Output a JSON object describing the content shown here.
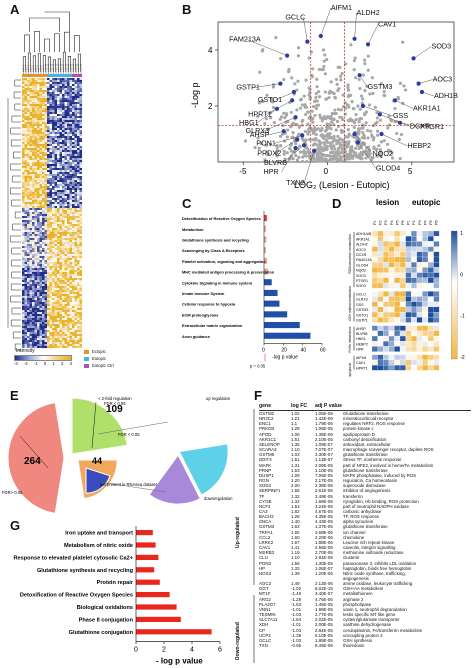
{
  "letters": {
    "a": "A",
    "b": "B",
    "c": "C",
    "d": "D",
    "e": "E",
    "f": "F",
    "g": "G"
  },
  "panel_a": {
    "legend_title": "Intensity",
    "legend_ticks": [
      "-3",
      "-2",
      "-1",
      "0",
      "1",
      "2",
      "3"
    ],
    "groups": [
      {
        "label": "Ectopic",
        "color": "#e8922a"
      },
      {
        "label": "Eutopic",
        "color": "#46b3e6"
      },
      {
        "label": "Eutopic Ctrl",
        "color": "#b050b0"
      }
    ],
    "colors": {
      "low": "#1f2e8a",
      "mid": "#ffffff",
      "high": "#e8b22a"
    }
  },
  "panel_b": {
    "chart_data": {
      "type": "scatter",
      "xlabel": "LOG₂ (Lesion - Eutopic)",
      "ylabel": "-Log p",
      "xticks": [
        "-5",
        "0",
        "5"
      ],
      "yticks": [
        "2",
        "4"
      ],
      "xlim": [
        -6.5,
        7.5
      ],
      "ylim": [
        0,
        5
      ],
      "labels": [
        {
          "name": "GCLC",
          "x": -1.2,
          "y": 4.3
        },
        {
          "name": "AIFM1",
          "x": -0.4,
          "y": 4.5
        },
        {
          "name": "FAM213A",
          "x": -2.4,
          "y": 3.8
        },
        {
          "name": "ALDH2",
          "x": 1.6,
          "y": 4.4
        },
        {
          "name": "CAV1",
          "x": 2.4,
          "y": 4.2
        },
        {
          "name": "SOD3",
          "x": 5.1,
          "y": 3.7
        },
        {
          "name": "GSTP1",
          "x": -2.8,
          "y": 2.8
        },
        {
          "name": "GSTO1",
          "x": -2.0,
          "y": 2.5
        },
        {
          "name": "GSTM3",
          "x": 1.9,
          "y": 3.1
        },
        {
          "name": "HPRT1",
          "x": -2.1,
          "y": 2.2
        },
        {
          "name": "HBG1",
          "x": -3.0,
          "y": 1.9
        },
        {
          "name": "GLRX3",
          "x": -1.9,
          "y": 1.6
        },
        {
          "name": "AOC3",
          "x": 5.4,
          "y": 2.8
        },
        {
          "name": "ADH1B",
          "x": 5.6,
          "y": 2.5
        },
        {
          "name": "AKR1A1",
          "x": 4.0,
          "y": 2.2
        },
        {
          "name": "GSS",
          "x": 2.1,
          "y": 2.0
        },
        {
          "name": "DCXR",
          "x": 3.1,
          "y": 1.7
        },
        {
          "name": "AHSP",
          "x": -2.6,
          "y": 1.1
        },
        {
          "name": "PON1",
          "x": -1.5,
          "y": 0.95
        },
        {
          "name": "PRDX2",
          "x": -1.8,
          "y": 0.8
        },
        {
          "name": "BLVRB",
          "x": -1.4,
          "y": 0.6
        },
        {
          "name": "HPR",
          "x": -1.9,
          "y": 0.5
        },
        {
          "name": "TXN2",
          "x": -0.8,
          "y": 0.4
        },
        {
          "name": "PTGR1",
          "x": 4.3,
          "y": 1.4
        },
        {
          "name": "HEBP2",
          "x": 3.2,
          "y": 1.0
        },
        {
          "name": "NQO2",
          "x": 1.6,
          "y": 1.0
        },
        {
          "name": "GLOD4",
          "x": 1.8,
          "y": 0.7
        }
      ],
      "threshold_lines": {
        "x": [
          -1,
          1
        ],
        "y": 1.3
      }
    }
  },
  "panel_c": {
    "chart_data": {
      "type": "bar",
      "orientation": "horizontal",
      "categories": [
        "Detoxification of Reactive Oxygen Species",
        "Metabolism",
        "Glutathione synthesis and recycling",
        "Scavenging by Class A Receptors",
        "Platelet activation, signaling and aggregation",
        "MHC mediated antigen processing & presentation",
        "Cytokine Signaling in Immune system",
        "Innate Immune System",
        "Cellular response to hypoxia",
        "ECM proteoglycans",
        "Extracellular matrix organization",
        "Axon guidance"
      ],
      "values": [
        3,
        2,
        2.5,
        2,
        3,
        4,
        8,
        14,
        16,
        24,
        37,
        48
      ],
      "xticks": [
        "0",
        "20",
        "40",
        "60"
      ],
      "xlim": [
        0,
        60
      ],
      "xlabel": "-log p value",
      "annotation": "p = 0.05",
      "colors": {
        "red": "#e8392a",
        "salmon": "#f2a08a",
        "blue": "#1f4fa8"
      }
    }
  },
  "panel_d": {
    "col_groups": [
      "lesion",
      "eutopic"
    ],
    "columns": [
      "P1",
      "P2",
      "P3",
      "P4",
      "P5",
      "P6",
      "P1",
      "P2",
      "P3",
      "P4",
      "P5",
      "P6"
    ],
    "row_groups": [
      {
        "label": "ROS/xenobiotic metabolism",
        "rows": [
          "ADH1A/B",
          "AKR1A1",
          "ALDH2",
          "AOC3",
          "DCXR",
          "FAM213A",
          "GLOD4",
          "NQO2",
          "SOD3",
          "PTGR1",
          "SOD3"
        ]
      },
      {
        "label": "GSH related metabolism",
        "rows": [
          "GCLC",
          "GLRX3",
          "GSS",
          "GSTM3",
          "GSTO1",
          "GSTP1"
        ]
      },
      {
        "label": "Fe/Hb metabolism",
        "rows": [
          "AHSP",
          "BLVRB",
          "HBG1",
          "HEBP2",
          "HPR"
        ]
      },
      {
        "label": "apoptosis",
        "rows": [
          "AIFM1",
          "CAV1",
          "HPRT1"
        ]
      }
    ],
    "colorbar_ticks": [
      "1",
      "0",
      "-1",
      "-2"
    ],
    "colors": {
      "high": "#1c4f9c",
      "mid": "#ffffff",
      "low": "#f2b642"
    }
  },
  "panel_e": {
    "values": [
      "264",
      "109",
      "44"
    ],
    "labels": {
      "lfc2": "< 2-fold regulation\nFDR < 0.05",
      "fdr": "FDR < 0.05",
      "fdr2": "FDR> 0.05",
      "notpresent": "not present in RNAseq dataset",
      "up": "up regulation",
      "down": "downregulation"
    },
    "colors": {
      "big": "#f08880",
      "green": "#b0e06a",
      "orange": "#f0a85a",
      "cyan": "#5ed0e8",
      "purple": "#a888d8"
    }
  },
  "panel_f": {
    "headers": [
      "gene",
      "log FC",
      "adj P value",
      ""
    ],
    "up_label": "Up-regulated",
    "down_label": "Down-regulated",
    "rows": [
      [
        "GSTM2",
        "1.02",
        "1.05E-08",
        "Glutathione transferase"
      ],
      [
        "NR2C2",
        "1.21",
        "1.42E-09",
        "mineralocorticoid receptor"
      ],
      [
        "ENC1",
        "1.1",
        "1.79E-06",
        "regulates NRF2, ROS response"
      ],
      [
        "PRKCB",
        "1.29",
        "1.06E-05",
        "protein kinase c"
      ],
      [
        "APOD",
        "1.06",
        "1.38E-06",
        "apolipoprotein D"
      ],
      [
        "AKR1C1",
        "1.51",
        "2.10E-05",
        "carbonyl detoxification"
      ],
      [
        "SELENOP",
        "1.35",
        "1.09E-07",
        "antioxidant, extracellular"
      ],
      [
        "SCARA3",
        "1.10",
        "7.07E-07",
        "macrophage scavenger receptor, deplete ROS"
      ],
      [
        "GSTM5",
        "1.03",
        "2.30E-07",
        "glutathione transferase"
      ],
      [
        "DDIT4",
        "1.51",
        "1.13E-07",
        "Stress TF, ironheme response"
      ],
      [
        "MAFK",
        "1.31",
        "2.09E-05",
        "part of NFE2, involved in heme/Fe metabolism"
      ],
      [
        "PRNP",
        "1.53",
        "1.10E-05",
        "glutathione transferase"
      ],
      [
        "DUSP1",
        "1.09",
        "7.06E-05",
        "MAPK phosphatase, induced by ROS"
      ],
      [
        "RGN",
        "1.20",
        "2.17E-05",
        "regucalcin, Ca homeostasis"
      ],
      [
        "SOD3",
        "2.00",
        "2.38E-05",
        "superoxide dismutase"
      ],
      [
        "SERPINF1",
        "1.56",
        "2.61E-05",
        "inhibitor of angiogenesis"
      ],
      [
        "TF",
        "1.32",
        "3.49E-05",
        "transferrin"
      ],
      [
        "CYGB",
        "1.32",
        "1.68E-05",
        "cytoglobin, Hb binding, ROS protection"
      ],
      [
        "NCF4",
        "1.53",
        "3.24E-05",
        "part of neutrophil NADPH oxidase"
      ],
      [
        "CA3",
        "1.82",
        "4.67E-05",
        "carbonic anhydrase"
      ],
      [
        "BACH2",
        "1.28",
        "4.35E-05",
        "TF, ROS response"
      ],
      [
        "SNCA",
        "1.40",
        "4.43E-05",
        "alpha synuclein"
      ],
      [
        "GSTM3",
        "1.63",
        "1.37E-05",
        "glutathione transferase"
      ],
      [
        "TRPA1",
        "1.55",
        "3.69E-06",
        "ion channel"
      ],
      [
        "CCL2",
        "1.60",
        "2.20E-06",
        "chemokine"
      ],
      [
        "LRRK2",
        "1.67",
        "1.88E-06",
        "Leucine rich repeat kinase"
      ],
      [
        "CAV1",
        "1.41",
        "2.56E-06",
        "caveolin, integrin signalling"
      ],
      [
        "MSRB3",
        "1.19",
        "2.70E-06",
        "methionine sulfoxide reductase"
      ],
      [
        "CLU",
        "1.10",
        "2.84E-05",
        "clusterin"
      ],
      [
        "PON3",
        "1.56",
        "1.30E-05",
        "paraoxonase 3, inhibits LDL oxidation"
      ],
      [
        "HP",
        "1.33",
        "1.06E-07",
        "haptoglobin, binds free hemoglobin"
      ],
      [
        "NOS3",
        "1.39",
        "1.20E-06",
        "Nitric oxide synthase, trafficking,"
      ],
      [
        "",
        "",
        "",
        "angiogenesis"
      ],
      [
        "AOC3",
        "1.49",
        "2.13E-06",
        "amine oxidase, leukocyte trafficking"
      ],
      [
        "",
        "",
        "",
        ""
      ],
      [
        "GGT",
        "-1.02",
        "6.02E-15",
        "GSH-AA metabolism"
      ],
      [
        "MT1F",
        "-1.49",
        "3.40E-07",
        "metallothionein"
      ],
      [
        "ARG2",
        "-1.28",
        "4.76E-06",
        "arginase 2"
      ],
      [
        "PLA2G7",
        "-1.63",
        "1.46E-05",
        "phospholipase"
      ],
      [
        "VNN1",
        "-1.01",
        "1.99E-05",
        "vanin 1, neutrophil degranulation"
      ],
      [
        "TESMIN",
        "-1.03",
        "2.77E-05",
        "testis specific MT like gene"
      ],
      [
        "SLC7A11",
        "-1.64",
        "2.02E-05",
        "cystein/glutamate transporter"
      ],
      [
        "XDH",
        "-1.01",
        "2.00E-05",
        "xanthine dehydrogenase"
      ],
      [
        "CP",
        "-1.03",
        "2.84E-05",
        "ceruloplasmin, Fe/transferrin metabolism"
      ],
      [
        "UCP2",
        "-1.39",
        "5.10E-05",
        "uncoupling protein 2"
      ],
      [
        "GCLC",
        "-1.03",
        "1.89E-05",
        "GSH synthesis"
      ],
      [
        "TXN",
        "-0.95",
        "8.45E-06",
        "thioredoxin"
      ]
    ]
  },
  "panel_g": {
    "chart_data": {
      "type": "bar",
      "orientation": "horizontal",
      "categories": [
        "Iron uptake and transport",
        "Metabolism of nitric oxide",
        "Response to elevated platelet cytosolic Ca2+",
        "Glutathione synthesis and recycling",
        "Protein repair",
        "Detoxification of Reactive Oxygen Species",
        "Biological oxidations",
        "Phase II conjugation",
        "Glutathione conjugation"
      ],
      "values": [
        1.2,
        1.4,
        1.6,
        1.3,
        1.7,
        2.4,
        2.9,
        3.2,
        5.4
      ],
      "xticks": [
        "0",
        "2",
        "4",
        "6"
      ],
      "xlim": [
        0,
        6
      ],
      "xlabel": "- log p value",
      "color": "#e8271d"
    }
  }
}
